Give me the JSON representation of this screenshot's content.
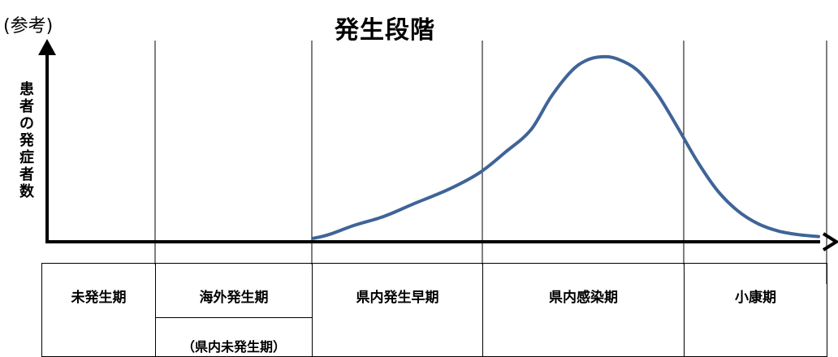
{
  "ref_label": "(参考)",
  "title": "発生段階",
  "ylabel": "患者の発症者数",
  "phases": [
    {
      "name": "未発生期"
    },
    {
      "name": "海外発生期",
      "sub": "（県内未発生期）"
    },
    {
      "name": "県内発生早期"
    },
    {
      "name": "県内感染期"
    },
    {
      "name": "小康期"
    }
  ],
  "colors": {
    "curve": "#3f6497",
    "axis": "#000000"
  },
  "chart_data": {
    "type": "line",
    "title": "発生段階",
    "xlabel": "",
    "ylabel": "患者の発症者数",
    "x": [
      0.0,
      0.03,
      0.08,
      0.14,
      0.2,
      0.27,
      0.33,
      0.38,
      0.43,
      0.47,
      0.51,
      0.54,
      0.57,
      0.6,
      0.64,
      0.68,
      0.72,
      0.76,
      0.8,
      0.84,
      0.88,
      0.92,
      0.96,
      1.0
    ],
    "y": [
      0.01,
      0.03,
      0.08,
      0.13,
      0.2,
      0.28,
      0.37,
      0.48,
      0.6,
      0.78,
      0.92,
      0.98,
      1.0,
      0.99,
      0.93,
      0.8,
      0.62,
      0.43,
      0.27,
      0.16,
      0.09,
      0.05,
      0.03,
      0.02
    ],
    "xlim": [
      0,
      1
    ],
    "ylim": [
      0,
      1.05
    ],
    "grid": false,
    "legend": "none"
  }
}
